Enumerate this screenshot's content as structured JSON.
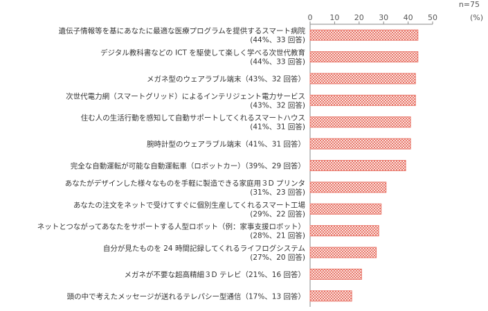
{
  "chart_data": {
    "type": "bar",
    "orientation": "horizontal",
    "title": "",
    "sample_note": "n=75",
    "unit_label": "(%)",
    "xlim": [
      0,
      50
    ],
    "xticks": [
      "0",
      "10",
      "20",
      "30",
      "40",
      "50"
    ],
    "grid": false,
    "legend": "none",
    "bar_color": "#e8766a",
    "categories": [
      [
        "遺伝子情報等を基にあなたに最適な医療プログラムを提供するスマート病院",
        "(44%、33 回答)"
      ],
      [
        "デジタル教科書などの ICT を駆使して楽しく学べる次世代教育",
        "(44%、33 回答)"
      ],
      [
        "メガネ型のウェアラブル端末（43%、32 回答）"
      ],
      [
        "次世代電力網（スマートグリッド）によるインテリジェント電力サービス",
        "(43%、32 回答)"
      ],
      [
        "住む人の生活行動を感知して自動サポートしてくれるスマートハウス",
        "(41%、31 回答)"
      ],
      [
        "腕時計型のウェアラブル端末（41%、31 回答）"
      ],
      [
        "完全な自動運転が可能な自動運転車（ロボットカー）（39%、29 回答）"
      ],
      [
        "あなたがデザインした様々なものを手軽に製造できる家庭用３D プリンタ",
        "(31%、23 回答)"
      ],
      [
        "あなたの注文をネットで受けてすぐに個別生産してくれるスマート工場",
        "(29%、22 回答)"
      ],
      [
        "ネットとつながってあなたをサポートする人型ロボット（例：家事支援ロボット）",
        "(28%、21 回答)"
      ],
      [
        "自分が見たものを 24 時間記録してくれるライフログシステム",
        "(27%、20 回答)"
      ],
      [
        "メガネが不要な超高精細３D テレビ（21%、16 回答）"
      ],
      [
        "頭の中で考えたメッセージが送れるテレパシー型通信（17%、13 回答）"
      ]
    ],
    "values": [
      44,
      44,
      43,
      43,
      41,
      41,
      39,
      31,
      29,
      28,
      27,
      21,
      17
    ]
  }
}
